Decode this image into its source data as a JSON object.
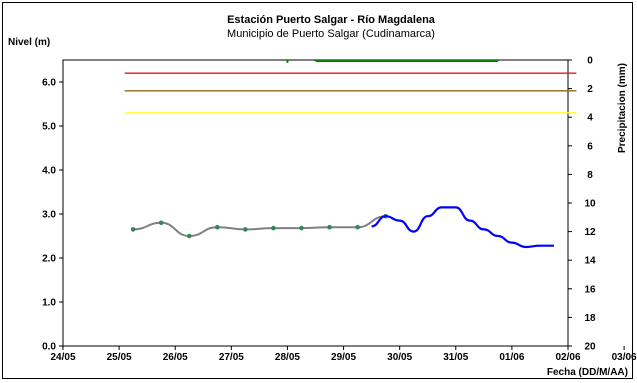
{
  "chart_data": {
    "type": "line",
    "title": "Estación Puerto Salgar - Río Magdalena",
    "subtitle": "Municipio de Puerto Salgar (Cudinamarca)",
    "ylabel": "Nivel (m)",
    "y2label": "Precipitacion (mm)",
    "xlabel": "Fecha (DD/M/AA)",
    "ylim": [
      0,
      6.5
    ],
    "y2lim": [
      0,
      20
    ],
    "y2_inverted": true,
    "xlim": [
      0,
      9
    ],
    "yticks": [
      "0.0",
      "1.0",
      "2.0",
      "3.0",
      "4.0",
      "5.0",
      "6.0"
    ],
    "y2ticks": [
      "0",
      "2",
      "4",
      "6",
      "8",
      "10",
      "12",
      "14",
      "16",
      "18",
      "20"
    ],
    "xticks": [
      "24/05",
      "25/05",
      "26/05",
      "27/05",
      "28/05",
      "29/05",
      "30/05",
      "31/05",
      "01/06",
      "02/06",
      "03/06"
    ],
    "thresholds": [
      {
        "value": 6.2,
        "color": "#e31a1c"
      },
      {
        "value": 5.8,
        "color": "#8b6914"
      },
      {
        "value": 5.3,
        "color": "#ffff33"
      }
    ],
    "threshold_x": [
      1.1,
      9.15
    ],
    "series": [
      {
        "style": "observed",
        "color": "#808080",
        "marker_color": "#2e8b57",
        "x": [
          1.25,
          1.75,
          2.25,
          2.75,
          3.25,
          3.75,
          4.25,
          4.75,
          5.25,
          5.75
        ],
        "y": [
          2.65,
          2.8,
          2.5,
          2.7,
          2.65,
          2.68,
          2.68,
          2.7,
          2.7,
          2.95
        ]
      },
      {
        "style": "forecast",
        "color": "#0000ff",
        "x": [
          5.5,
          5.75,
          6.0,
          6.25,
          6.5,
          6.75,
          7.0,
          7.25,
          7.5,
          7.75,
          8.0,
          8.25,
          8.5,
          8.75
        ],
        "y": [
          2.72,
          2.95,
          2.85,
          2.6,
          2.95,
          3.15,
          3.15,
          2.85,
          2.65,
          2.5,
          2.35,
          2.25,
          2.28,
          2.28
        ]
      }
    ],
    "precipitation": {
      "color": "#008000",
      "x": [
        4.0,
        4.5,
        4.75,
        5.0,
        5.25,
        5.5,
        5.75,
        6.0,
        6.25,
        6.5,
        6.75,
        7.0,
        7.25,
        7.5,
        7.75
      ],
      "y": [
        0.2,
        0.05,
        0.1,
        0.05,
        0.1,
        0.05,
        0.1,
        0.05,
        0.1,
        0.05,
        0.1,
        0.05,
        0.05,
        0.05,
        0.05
      ]
    },
    "grid": false,
    "legend": "none"
  }
}
